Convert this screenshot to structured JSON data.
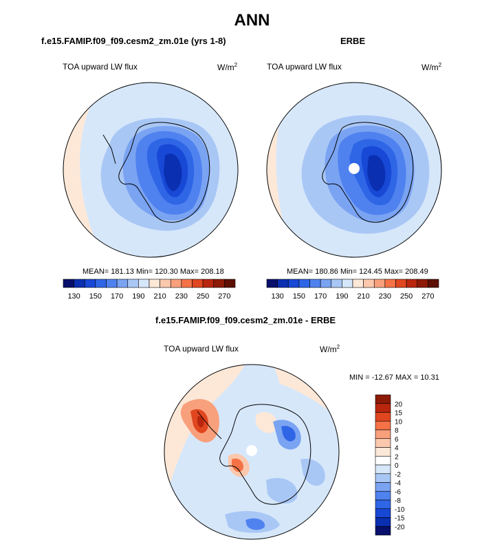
{
  "figure": {
    "title": "ANN"
  },
  "chart_data": [
    {
      "type": "heatmap",
      "projection": "south-polar-stereographic",
      "title": "f.e15.FAMIP.f09_f09.cesm2_zm.01e (yrs 1-8)",
      "variable": "TOA upward LW flux",
      "units": "W/m",
      "units_exponent": "2",
      "stats": {
        "text": "MEAN= 181.13  Min= 120.30  Max= 208.18",
        "mean": 181.13,
        "min": 120.3,
        "max": 208.18
      },
      "colorbar": {
        "levels": [
          130,
          140,
          150,
          160,
          170,
          180,
          190,
          200,
          210,
          220,
          230,
          240,
          250,
          260,
          270
        ],
        "tick_labels": [
          "130",
          "150",
          "170",
          "190",
          "210",
          "230",
          "250",
          "270"
        ],
        "colors": [
          "#08106b",
          "#0a2fb0",
          "#1748d6",
          "#2f66e6",
          "#4f82ef",
          "#7aa3f2",
          "#a9c7f5",
          "#d6e7fa",
          "#fde8d8",
          "#fbc8ad",
          "#f8a07c",
          "#f47246",
          "#e0461f",
          "#b9260e",
          "#8d1a06",
          "#5c0f02"
        ]
      }
    },
    {
      "type": "heatmap",
      "projection": "south-polar-stereographic",
      "title": "ERBE",
      "variable": "TOA upward LW flux",
      "units": "W/m",
      "units_exponent": "2",
      "stats": {
        "text": "MEAN= 180.86  Min= 124.45  Max= 208.49",
        "mean": 180.86,
        "min": 124.45,
        "max": 208.49
      },
      "colorbar": {
        "levels": [
          130,
          140,
          150,
          160,
          170,
          180,
          190,
          200,
          210,
          220,
          230,
          240,
          250,
          260,
          270
        ],
        "tick_labels": [
          "130",
          "150",
          "170",
          "190",
          "210",
          "230",
          "250",
          "270"
        ],
        "colors": [
          "#08106b",
          "#0a2fb0",
          "#1748d6",
          "#2f66e6",
          "#4f82ef",
          "#7aa3f2",
          "#a9c7f5",
          "#d6e7fa",
          "#fde8d8",
          "#fbc8ad",
          "#f8a07c",
          "#f47246",
          "#e0461f",
          "#b9260e",
          "#8d1a06",
          "#5c0f02"
        ]
      }
    },
    {
      "type": "heatmap",
      "projection": "south-polar-stereographic",
      "title": "f.e15.FAMIP.f09_f09.cesm2_zm.01e - ERBE",
      "variable": "TOA upward LW flux",
      "units": "W/m",
      "units_exponent": "2",
      "stats": {
        "text": "MIN = -12.67 MAX =  10.31",
        "min": -12.67,
        "max": 10.31
      },
      "colorbar": {
        "levels": [
          20,
          15,
          10,
          8,
          6,
          4,
          2,
          0,
          -2,
          -4,
          -6,
          -8,
          -10,
          -15,
          -20
        ],
        "tick_labels": [
          "20",
          "15",
          "10",
          "8",
          "6",
          "4",
          "2",
          "0",
          "-2",
          "-4",
          "-6",
          "-8",
          "-10",
          "-15",
          "-20"
        ],
        "colors": [
          "#8d1a06",
          "#b9260e",
          "#e0461f",
          "#f47246",
          "#f8a07c",
          "#fbc8ad",
          "#fde8d8",
          "#ffffff",
          "#d6e7fa",
          "#a9c7f5",
          "#7aa3f2",
          "#4f82ef",
          "#2f66e6",
          "#1748d6",
          "#0a2fb0",
          "#08106b"
        ]
      }
    }
  ]
}
